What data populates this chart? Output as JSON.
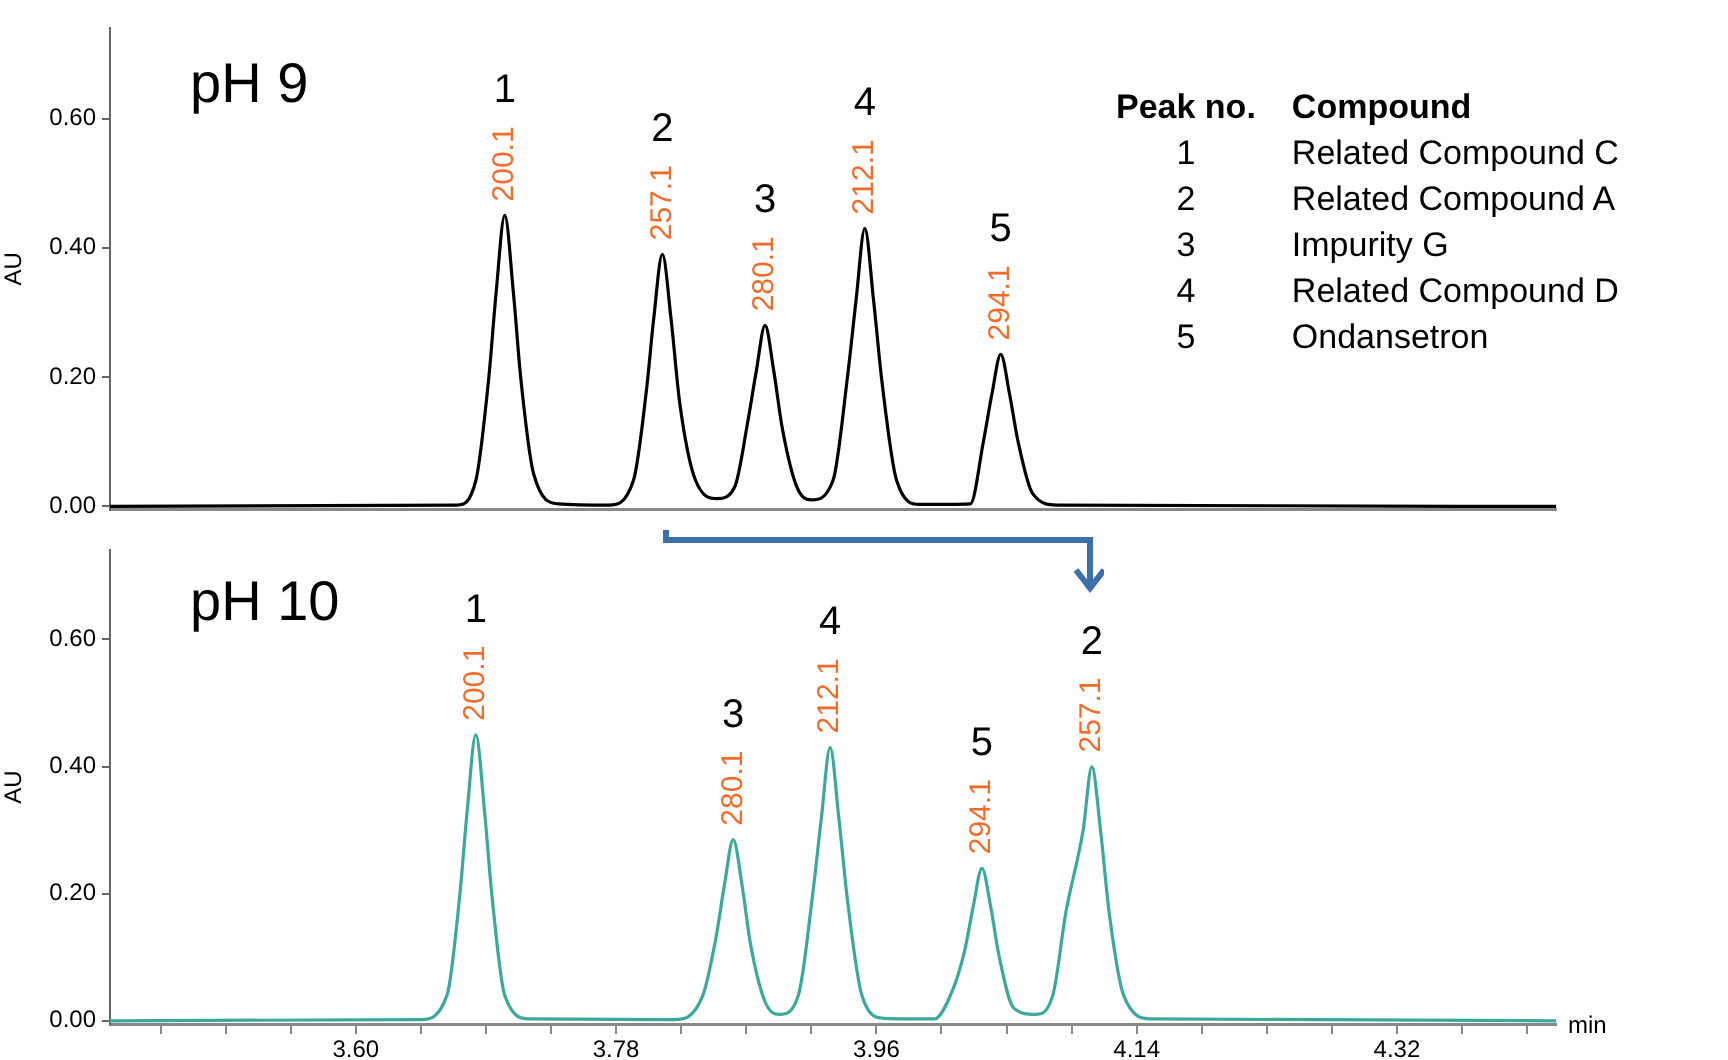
{
  "chart_data": [
    {
      "type": "line",
      "title": "pH 9",
      "ylabel": "AU",
      "xlim": [
        3.43,
        4.43
      ],
      "ylim": [
        -0.005,
        0.74
      ],
      "yticks": [
        {
          "value": 0,
          "label": "0.00"
        },
        {
          "value": 0.2,
          "label": "0.20"
        },
        {
          "value": 0.4,
          "label": "0.40"
        },
        {
          "value": 0.6,
          "label": "0.60"
        }
      ],
      "tick_labels": "y",
      "marker": "none",
      "legend": false,
      "grid": false,
      "series": [
        {
          "color": "#000000",
          "x": [
            3.43,
            3.67,
            3.683,
            3.692,
            3.697,
            3.703,
            3.709,
            3.714,
            3.723,
            3.74,
            3.775,
            3.792,
            3.801,
            3.806,
            3.812,
            3.818,
            3.824,
            3.835,
            3.85,
            3.862,
            3.871,
            3.877,
            3.883,
            3.889,
            3.895,
            3.905,
            3.915,
            3.93,
            3.94,
            3.946,
            3.952,
            3.958,
            3.964,
            3.974,
            3.99,
            4.025,
            4.034,
            4.04,
            4.046,
            4.052,
            4.058,
            4.068,
            4.085,
            4.43
          ],
          "values": [
            0,
            0.002,
            0.04,
            0.2,
            0.33,
            0.45,
            0.33,
            0.2,
            0.05,
            0.004,
            0.002,
            0.04,
            0.18,
            0.29,
            0.39,
            0.29,
            0.16,
            0.04,
            0.012,
            0.03,
            0.13,
            0.21,
            0.28,
            0.21,
            0.12,
            0.03,
            0.01,
            0.04,
            0.2,
            0.32,
            0.43,
            0.32,
            0.19,
            0.04,
            0.003,
            0.004,
            0.1,
            0.175,
            0.235,
            0.175,
            0.1,
            0.02,
            0.002,
            0
          ]
        }
      ],
      "annotations": [
        {
          "text": "1",
          "x": 3.703,
          "y": 0.45
        },
        {
          "text": "200.1",
          "x": 3.703,
          "y": 0.45
        },
        {
          "text": "2",
          "x": 3.812,
          "y": 0.39
        },
        {
          "text": "257.1",
          "x": 3.812,
          "y": 0.39
        },
        {
          "text": "3",
          "x": 3.883,
          "y": 0.28
        },
        {
          "text": "280.1",
          "x": 3.883,
          "y": 0.28
        },
        {
          "text": "4",
          "x": 3.952,
          "y": 0.43
        },
        {
          "text": "212.1",
          "x": 3.952,
          "y": 0.43
        },
        {
          "text": "5",
          "x": 4.046,
          "y": 0.235
        },
        {
          "text": "294.1",
          "x": 4.046,
          "y": 0.235
        },
        "Peak no.",
        "Compound",
        "1",
        "Related Compound C",
        "2",
        "Related Compound A",
        "3",
        "Impurity G",
        "4",
        "Related Compound D",
        "5",
        "Ondansetron"
      ]
    },
    {
      "type": "line",
      "title": "pH 10",
      "ylabel": "AU",
      "xlabel": "min",
      "xlim": [
        3.43,
        4.43
      ],
      "ylim": [
        -0.005,
        0.74
      ],
      "xticks": [
        {
          "value": 3.465,
          "label": null
        },
        {
          "value": 3.51,
          "label": null
        },
        {
          "value": 3.555,
          "label": null
        },
        {
          "value": 3.6,
          "label": "3.60"
        },
        {
          "value": 3.645,
          "label": null
        },
        {
          "value": 3.69,
          "label": null
        },
        {
          "value": 3.735,
          "label": null
        },
        {
          "value": 3.78,
          "label": "3.78"
        },
        {
          "value": 3.825,
          "label": null
        },
        {
          "value": 3.87,
          "label": null
        },
        {
          "value": 3.915,
          "label": null
        },
        {
          "value": 3.96,
          "label": "3.96"
        },
        {
          "value": 4.005,
          "label": null
        },
        {
          "value": 4.05,
          "label": null
        },
        {
          "value": 4.095,
          "label": null
        },
        {
          "value": 4.14,
          "label": "4.14"
        },
        {
          "value": 4.185,
          "label": null
        },
        {
          "value": 4.23,
          "label": null
        },
        {
          "value": 4.275,
          "label": null
        },
        {
          "value": 4.32,
          "label": "4.32"
        },
        {
          "value": 4.365,
          "label": null
        },
        {
          "value": 4.41,
          "label": null
        }
      ],
      "yticks": [
        {
          "value": 0,
          "label": "0.00"
        },
        {
          "value": 0.2,
          "label": "0.20"
        },
        {
          "value": 0.4,
          "label": "0.40"
        },
        {
          "value": 0.6,
          "label": "0.60"
        }
      ],
      "marker": "none",
      "legend": false,
      "grid": false,
      "series": [
        {
          "color": "#3aa99a",
          "x": [
            3.43,
            3.645,
            3.663,
            3.672,
            3.677,
            3.683,
            3.689,
            3.694,
            3.703,
            3.72,
            3.82,
            3.84,
            3.849,
            3.855,
            3.861,
            3.867,
            3.873,
            3.883,
            3.893,
            3.906,
            3.916,
            3.922,
            3.928,
            3.934,
            3.94,
            3.95,
            3.965,
            4.0,
            4.013,
            4.021,
            4.027,
            4.033,
            4.039,
            4.045,
            4.055,
            4.07,
            4.082,
            4.091,
            4.103,
            4.109,
            4.115,
            4.121,
            4.131,
            4.15,
            4.43
          ],
          "values": [
            0,
            0.002,
            0.04,
            0.2,
            0.33,
            0.45,
            0.33,
            0.2,
            0.04,
            0.003,
            0.002,
            0.04,
            0.13,
            0.215,
            0.285,
            0.215,
            0.12,
            0.03,
            0.01,
            0.04,
            0.2,
            0.32,
            0.43,
            0.32,
            0.19,
            0.04,
            0.004,
            0.003,
            0.05,
            0.11,
            0.18,
            0.24,
            0.18,
            0.1,
            0.02,
            0.01,
            0.04,
            0.17,
            0.3,
            0.4,
            0.3,
            0.17,
            0.04,
            0.003,
            0
          ]
        }
      ],
      "annotations": [
        {
          "text": "1",
          "x": 3.683,
          "y": 0.45
        },
        {
          "text": "200.1",
          "x": 3.683,
          "y": 0.45
        },
        {
          "text": "3",
          "x": 3.861,
          "y": 0.285
        },
        {
          "text": "280.1",
          "x": 3.861,
          "y": 0.285
        },
        {
          "text": "4",
          "x": 3.928,
          "y": 0.43
        },
        {
          "text": "212.1",
          "x": 3.928,
          "y": 0.43
        },
        {
          "text": "5",
          "x": 4.033,
          "y": 0.24
        },
        {
          "text": "294.1",
          "x": 4.033,
          "y": 0.24
        },
        {
          "text": "2",
          "x": 4.109,
          "y": 0.4
        },
        {
          "text": "257.1",
          "x": 4.109,
          "y": 0.4
        }
      ]
    }
  ]
}
